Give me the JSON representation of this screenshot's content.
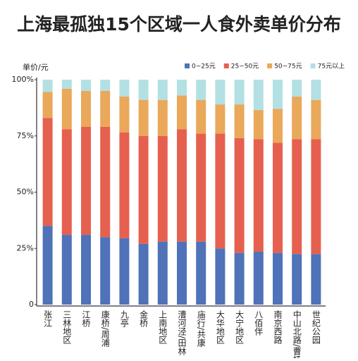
{
  "chart_data": {
    "type": "stacked_bar_percent",
    "title": "上海最孤独15个区域一人食外卖单价分布",
    "y_label": "单价/元",
    "categories": [
      "张江",
      "三林地区",
      "江桥",
      "康桥/周浦",
      "九亭",
      "金桥",
      "上南地区",
      "漕河泾/田林",
      "庙行/共康",
      "大华地区",
      "大宁地区",
      "八佰伴",
      "南京西路",
      "中山北路/曹杨",
      "世纪公园"
    ],
    "series": [
      {
        "name": "0~25元",
        "color": "#4f72b8",
        "values": [
          35,
          31,
          31,
          30,
          29.5,
          27,
          28,
          28,
          28,
          25,
          23,
          23.5,
          23,
          22.5,
          22.5
        ]
      },
      {
        "name": "25~50元",
        "color": "#e6604f",
        "values": [
          48,
          47,
          48,
          49,
          47,
          48,
          47,
          50,
          48,
          51,
          51,
          50,
          49,
          51,
          51
        ]
      },
      {
        "name": "50~75元",
        "color": "#eaa85a",
        "values": [
          11.5,
          18,
          16,
          16,
          16,
          16,
          16,
          15,
          15,
          13,
          15,
          13,
          15,
          19,
          17.5
        ]
      },
      {
        "name": "75元以上",
        "color": "#b3e0e3",
        "values": [
          5.5,
          4,
          5,
          5,
          7.5,
          9,
          9,
          7,
          9,
          11,
          11,
          13.5,
          13,
          7.5,
          9
        ]
      }
    ],
    "ylim": [
      0,
      100
    ],
    "yticks": [
      0,
      {
        "value": 25,
        "label": "25%"
      },
      {
        "value": 50,
        "label": "50%"
      },
      {
        "value": 75,
        "label": "75%"
      },
      {
        "value": 100,
        "label": "100%"
      }
    ],
    "legend": "top-right"
  }
}
